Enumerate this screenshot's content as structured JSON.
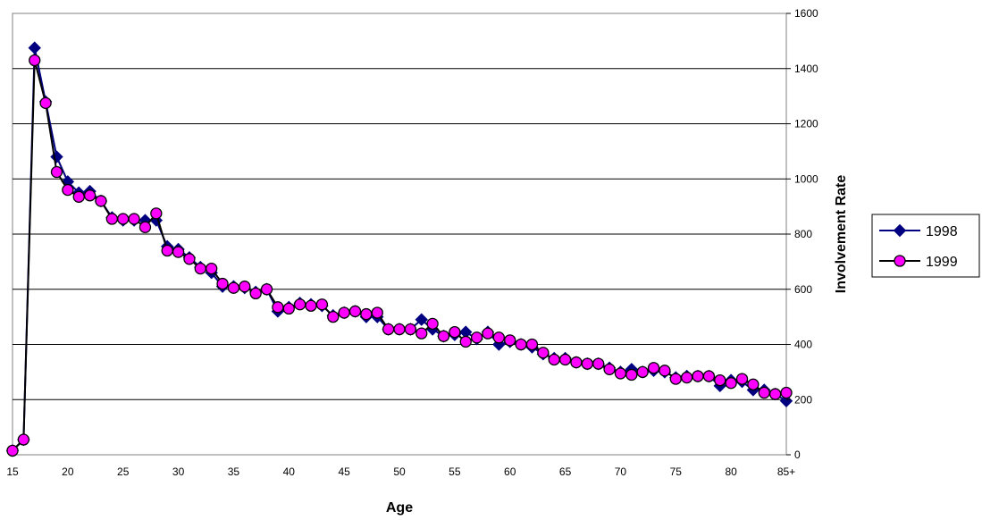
{
  "chart_data": {
    "type": "line",
    "xlabel": "Age",
    "ylabel": "Involvement Rate",
    "ylim": [
      0,
      1600
    ],
    "y_ticks": [
      "0",
      "200",
      "400",
      "600",
      "800",
      "1000",
      "1200",
      "1400",
      "1600"
    ],
    "x_tick_labels": [
      {
        "at": 15,
        "label": "15"
      },
      {
        "at": 20,
        "label": "20"
      },
      {
        "at": 25,
        "label": "25"
      },
      {
        "at": 30,
        "label": "30"
      },
      {
        "at": 35,
        "label": "35"
      },
      {
        "at": 40,
        "label": "40"
      },
      {
        "at": 45,
        "label": "45"
      },
      {
        "at": 50,
        "label": "50"
      },
      {
        "at": 55,
        "label": "55"
      },
      {
        "at": 60,
        "label": "60"
      },
      {
        "at": 65,
        "label": "65"
      },
      {
        "at": 70,
        "label": "70"
      },
      {
        "at": 75,
        "label": "75"
      },
      {
        "at": 80,
        "label": "80"
      },
      {
        "at": 85,
        "label": "85+"
      }
    ],
    "x": [
      15,
      16,
      17,
      18,
      19,
      20,
      21,
      22,
      23,
      24,
      25,
      26,
      27,
      28,
      29,
      30,
      31,
      32,
      33,
      34,
      35,
      36,
      37,
      38,
      39,
      40,
      41,
      42,
      43,
      44,
      45,
      46,
      47,
      48,
      49,
      50,
      51,
      52,
      53,
      54,
      55,
      56,
      57,
      58,
      59,
      60,
      61,
      62,
      63,
      64,
      65,
      66,
      67,
      68,
      69,
      70,
      71,
      72,
      73,
      74,
      75,
      76,
      77,
      78,
      79,
      80,
      81,
      82,
      83,
      84,
      85
    ],
    "grid": "horizontal",
    "y_axis_position": "right",
    "legend_position": "right",
    "series": [
      {
        "name": "1998",
        "marker": "diamond",
        "color": "#000080",
        "line_color": "#000080",
        "values": [
          15,
          55,
          1475,
          1280,
          1080,
          990,
          950,
          955,
          920,
          860,
          850,
          850,
          850,
          850,
          755,
          745,
          715,
          680,
          660,
          610,
          610,
          605,
          590,
          600,
          520,
          535,
          550,
          545,
          540,
          505,
          515,
          520,
          500,
          500,
          455,
          455,
          455,
          490,
          455,
          430,
          435,
          445,
          420,
          445,
          400,
          410,
          400,
          390,
          365,
          350,
          350,
          335,
          330,
          330,
          315,
          300,
          310,
          300,
          305,
          300,
          280,
          285,
          285,
          285,
          250,
          270,
          265,
          235,
          235,
          220,
          195
        ]
      },
      {
        "name": "1999",
        "marker": "circle",
        "color": "#FF00FF",
        "line_color": "#000000",
        "values": [
          15,
          55,
          1430,
          1275,
          1025,
          960,
          935,
          940,
          920,
          855,
          855,
          855,
          825,
          875,
          740,
          735,
          710,
          675,
          675,
          620,
          605,
          610,
          585,
          600,
          535,
          530,
          545,
          540,
          545,
          500,
          515,
          520,
          510,
          515,
          455,
          455,
          455,
          440,
          475,
          430,
          445,
          410,
          425,
          440,
          425,
          415,
          400,
          400,
          370,
          345,
          345,
          335,
          330,
          330,
          310,
          295,
          290,
          300,
          315,
          305,
          275,
          280,
          285,
          285,
          270,
          260,
          275,
          255,
          225,
          220,
          225
        ]
      }
    ]
  }
}
